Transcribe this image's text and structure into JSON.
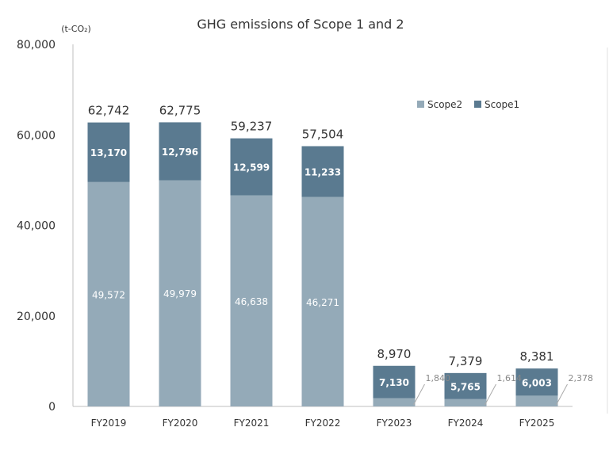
{
  "chart_data": {
    "type": "bar",
    "stacked": true,
    "title": "GHG emissions of Scope 1 and 2",
    "unit": "(t-CO₂)",
    "categories": [
      "FY2019",
      "FY2020",
      "FY2021",
      "FY2022",
      "FY2023",
      "FY2024",
      "FY2025"
    ],
    "series": [
      {
        "name": "Scope2",
        "values": [
          49572,
          49979,
          46638,
          46271,
          1840,
          1614,
          2378
        ],
        "color": "#94aab8"
      },
      {
        "name": "Scope1",
        "values": [
          13170,
          12796,
          12599,
          11233,
          7130,
          5765,
          6003
        ],
        "color": "#5a7a90"
      }
    ],
    "totals": [
      62742,
      62775,
      59237,
      57504,
      8970,
      7379,
      8381
    ],
    "yticks": [
      0,
      20000,
      40000,
      60000,
      80000
    ],
    "ylim": [
      0,
      80000
    ],
    "grid": false,
    "legend_position": "top-right"
  }
}
